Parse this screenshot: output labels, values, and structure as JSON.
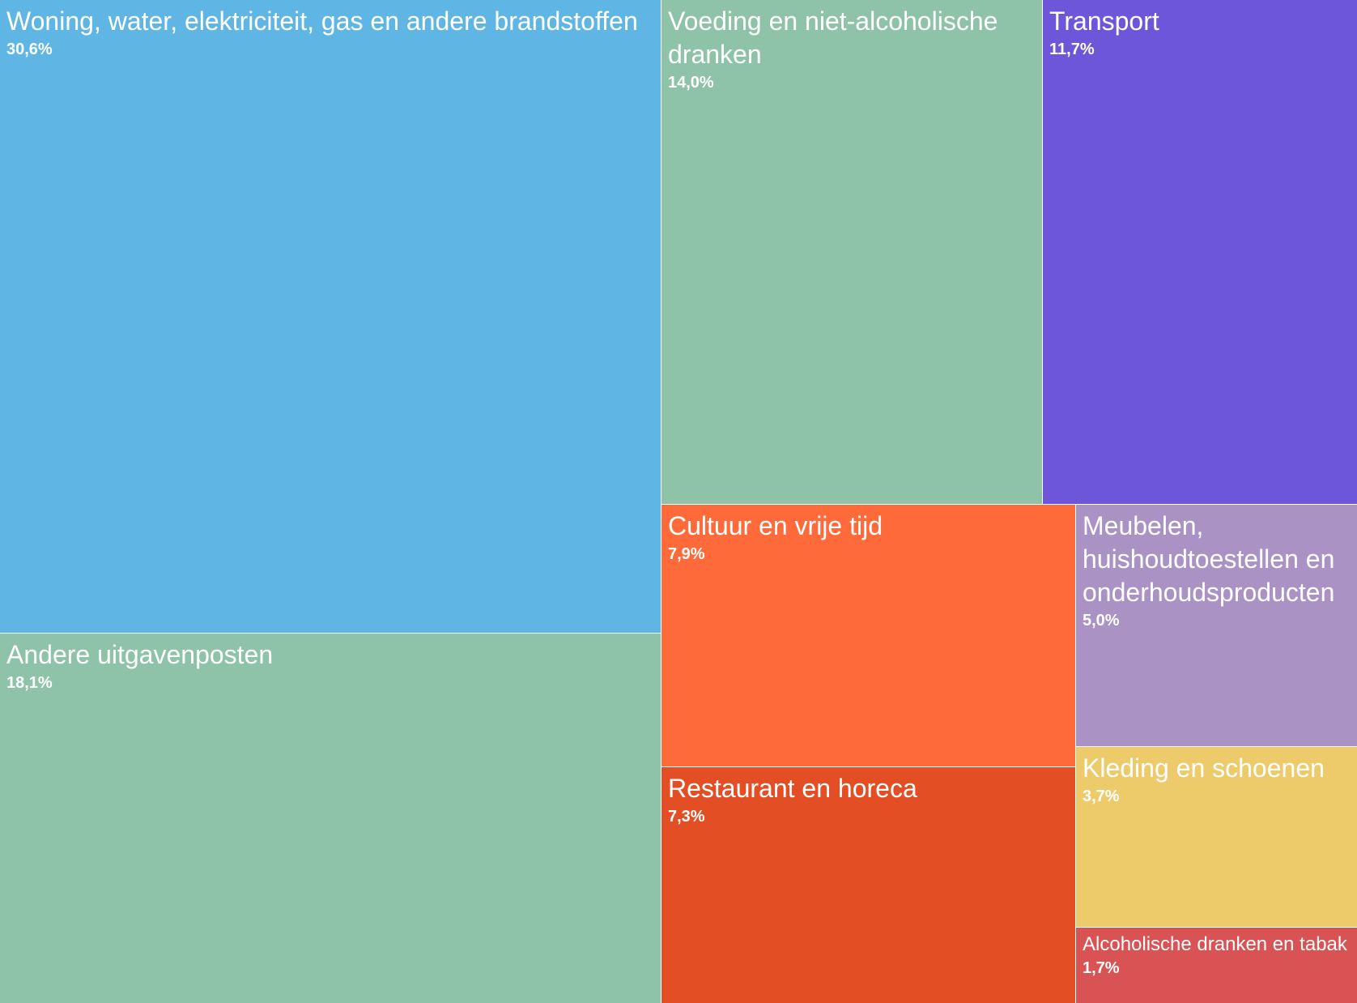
{
  "chart_data": {
    "type": "treemap",
    "title": "",
    "items": [
      {
        "label": "Woning, water, elektriciteit, gas en andere brandstoffen",
        "value": 30.6,
        "value_label": "30,6%",
        "color": "#5fb6e4"
      },
      {
        "label": "Andere uitgavenposten",
        "value": 18.1,
        "value_label": "18,1%",
        "color": "#8ec3a7"
      },
      {
        "label": "Voeding en niet-alcoholische dranken",
        "value": 14.0,
        "value_label": "14,0%",
        "color": "#8ec3a7"
      },
      {
        "label": "Transport",
        "value": 11.7,
        "value_label": "11,7%",
        "color": "#6e56db"
      },
      {
        "label": "Cultuur en vrije tijd",
        "value": 7.9,
        "value_label": "7,9%",
        "color": "#fe6a3a"
      },
      {
        "label": "Restaurant en horeca",
        "value": 7.3,
        "value_label": "7,3%",
        "color": "#e34e25"
      },
      {
        "label": "Meubelen, huishoudtoestellen en onderhoudsproducten",
        "value": 5.0,
        "value_label": "5,0%",
        "color": "#ab92c5"
      },
      {
        "label": "Kleding en schoenen",
        "value": 3.7,
        "value_label": "3,7%",
        "color": "#eecb6a"
      },
      {
        "label": "Alcoholische dranken en tabak",
        "value": 1.7,
        "value_label": "1,7%",
        "color": "#da5354"
      }
    ]
  }
}
